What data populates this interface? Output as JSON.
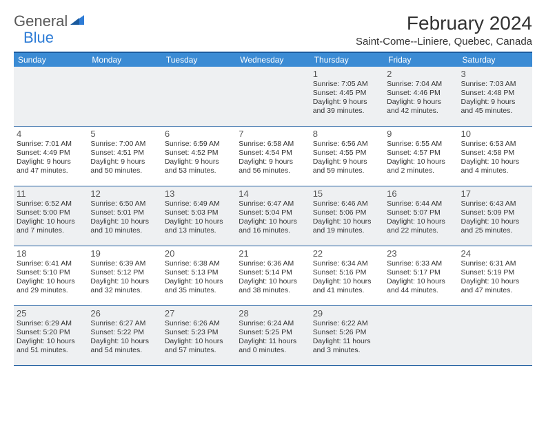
{
  "logo": {
    "part1": "General",
    "part2": "Blue"
  },
  "title": "February 2024",
  "location": "Saint-Come--Liniere, Quebec, Canada",
  "colors": {
    "header_bg": "#3b8bd4",
    "border": "#1a5a9e",
    "shade": "#eef0f2",
    "logo_gray": "#5a5a5a",
    "logo_blue": "#2e7cd6"
  },
  "weekdays": [
    "Sunday",
    "Monday",
    "Tuesday",
    "Wednesday",
    "Thursday",
    "Friday",
    "Saturday"
  ],
  "weeks": [
    [
      {
        "num": "",
        "lines": []
      },
      {
        "num": "",
        "lines": []
      },
      {
        "num": "",
        "lines": []
      },
      {
        "num": "",
        "lines": []
      },
      {
        "num": "1",
        "lines": [
          "Sunrise: 7:05 AM",
          "Sunset: 4:45 PM",
          "Daylight: 9 hours",
          "and 39 minutes."
        ]
      },
      {
        "num": "2",
        "lines": [
          "Sunrise: 7:04 AM",
          "Sunset: 4:46 PM",
          "Daylight: 9 hours",
          "and 42 minutes."
        ]
      },
      {
        "num": "3",
        "lines": [
          "Sunrise: 7:03 AM",
          "Sunset: 4:48 PM",
          "Daylight: 9 hours",
          "and 45 minutes."
        ]
      }
    ],
    [
      {
        "num": "4",
        "lines": [
          "Sunrise: 7:01 AM",
          "Sunset: 4:49 PM",
          "Daylight: 9 hours",
          "and 47 minutes."
        ]
      },
      {
        "num": "5",
        "lines": [
          "Sunrise: 7:00 AM",
          "Sunset: 4:51 PM",
          "Daylight: 9 hours",
          "and 50 minutes."
        ]
      },
      {
        "num": "6",
        "lines": [
          "Sunrise: 6:59 AM",
          "Sunset: 4:52 PM",
          "Daylight: 9 hours",
          "and 53 minutes."
        ]
      },
      {
        "num": "7",
        "lines": [
          "Sunrise: 6:58 AM",
          "Sunset: 4:54 PM",
          "Daylight: 9 hours",
          "and 56 minutes."
        ]
      },
      {
        "num": "8",
        "lines": [
          "Sunrise: 6:56 AM",
          "Sunset: 4:55 PM",
          "Daylight: 9 hours",
          "and 59 minutes."
        ]
      },
      {
        "num": "9",
        "lines": [
          "Sunrise: 6:55 AM",
          "Sunset: 4:57 PM",
          "Daylight: 10 hours",
          "and 2 minutes."
        ]
      },
      {
        "num": "10",
        "lines": [
          "Sunrise: 6:53 AM",
          "Sunset: 4:58 PM",
          "Daylight: 10 hours",
          "and 4 minutes."
        ]
      }
    ],
    [
      {
        "num": "11",
        "lines": [
          "Sunrise: 6:52 AM",
          "Sunset: 5:00 PM",
          "Daylight: 10 hours",
          "and 7 minutes."
        ]
      },
      {
        "num": "12",
        "lines": [
          "Sunrise: 6:50 AM",
          "Sunset: 5:01 PM",
          "Daylight: 10 hours",
          "and 10 minutes."
        ]
      },
      {
        "num": "13",
        "lines": [
          "Sunrise: 6:49 AM",
          "Sunset: 5:03 PM",
          "Daylight: 10 hours",
          "and 13 minutes."
        ]
      },
      {
        "num": "14",
        "lines": [
          "Sunrise: 6:47 AM",
          "Sunset: 5:04 PM",
          "Daylight: 10 hours",
          "and 16 minutes."
        ]
      },
      {
        "num": "15",
        "lines": [
          "Sunrise: 6:46 AM",
          "Sunset: 5:06 PM",
          "Daylight: 10 hours",
          "and 19 minutes."
        ]
      },
      {
        "num": "16",
        "lines": [
          "Sunrise: 6:44 AM",
          "Sunset: 5:07 PM",
          "Daylight: 10 hours",
          "and 22 minutes."
        ]
      },
      {
        "num": "17",
        "lines": [
          "Sunrise: 6:43 AM",
          "Sunset: 5:09 PM",
          "Daylight: 10 hours",
          "and 25 minutes."
        ]
      }
    ],
    [
      {
        "num": "18",
        "lines": [
          "Sunrise: 6:41 AM",
          "Sunset: 5:10 PM",
          "Daylight: 10 hours",
          "and 29 minutes."
        ]
      },
      {
        "num": "19",
        "lines": [
          "Sunrise: 6:39 AM",
          "Sunset: 5:12 PM",
          "Daylight: 10 hours",
          "and 32 minutes."
        ]
      },
      {
        "num": "20",
        "lines": [
          "Sunrise: 6:38 AM",
          "Sunset: 5:13 PM",
          "Daylight: 10 hours",
          "and 35 minutes."
        ]
      },
      {
        "num": "21",
        "lines": [
          "Sunrise: 6:36 AM",
          "Sunset: 5:14 PM",
          "Daylight: 10 hours",
          "and 38 minutes."
        ]
      },
      {
        "num": "22",
        "lines": [
          "Sunrise: 6:34 AM",
          "Sunset: 5:16 PM",
          "Daylight: 10 hours",
          "and 41 minutes."
        ]
      },
      {
        "num": "23",
        "lines": [
          "Sunrise: 6:33 AM",
          "Sunset: 5:17 PM",
          "Daylight: 10 hours",
          "and 44 minutes."
        ]
      },
      {
        "num": "24",
        "lines": [
          "Sunrise: 6:31 AM",
          "Sunset: 5:19 PM",
          "Daylight: 10 hours",
          "and 47 minutes."
        ]
      }
    ],
    [
      {
        "num": "25",
        "lines": [
          "Sunrise: 6:29 AM",
          "Sunset: 5:20 PM",
          "Daylight: 10 hours",
          "and 51 minutes."
        ]
      },
      {
        "num": "26",
        "lines": [
          "Sunrise: 6:27 AM",
          "Sunset: 5:22 PM",
          "Daylight: 10 hours",
          "and 54 minutes."
        ]
      },
      {
        "num": "27",
        "lines": [
          "Sunrise: 6:26 AM",
          "Sunset: 5:23 PM",
          "Daylight: 10 hours",
          "and 57 minutes."
        ]
      },
      {
        "num": "28",
        "lines": [
          "Sunrise: 6:24 AM",
          "Sunset: 5:25 PM",
          "Daylight: 11 hours",
          "and 0 minutes."
        ]
      },
      {
        "num": "29",
        "lines": [
          "Sunrise: 6:22 AM",
          "Sunset: 5:26 PM",
          "Daylight: 11 hours",
          "and 3 minutes."
        ]
      },
      {
        "num": "",
        "lines": []
      },
      {
        "num": "",
        "lines": []
      }
    ]
  ]
}
